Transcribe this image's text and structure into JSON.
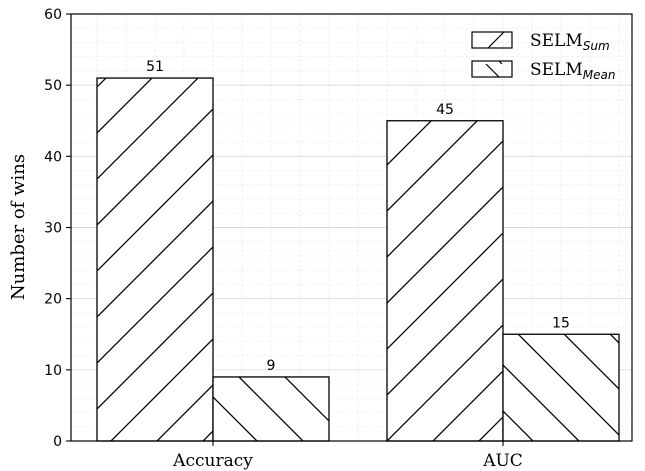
{
  "chart_data": {
    "type": "bar",
    "categories": [
      "Accuracy",
      "AUC"
    ],
    "series": [
      {
        "name_base": "SELM",
        "name_sub": "Sum",
        "values": [
          51,
          45
        ],
        "hatch": "forward-diagonal"
      },
      {
        "name_base": "SELM",
        "name_sub": "Mean",
        "values": [
          9,
          15
        ],
        "hatch": "backward-diagonal"
      }
    ],
    "ylabel": "Number of wins",
    "ylim": [
      0,
      60
    ],
    "yticks": [
      0,
      10,
      20,
      30,
      40,
      50,
      60
    ],
    "grid": true,
    "legend_position": "top-right",
    "colors": {
      "bar_fill": "#ffffff",
      "edge": "#000000",
      "grid": "#d9d9d9"
    }
  }
}
